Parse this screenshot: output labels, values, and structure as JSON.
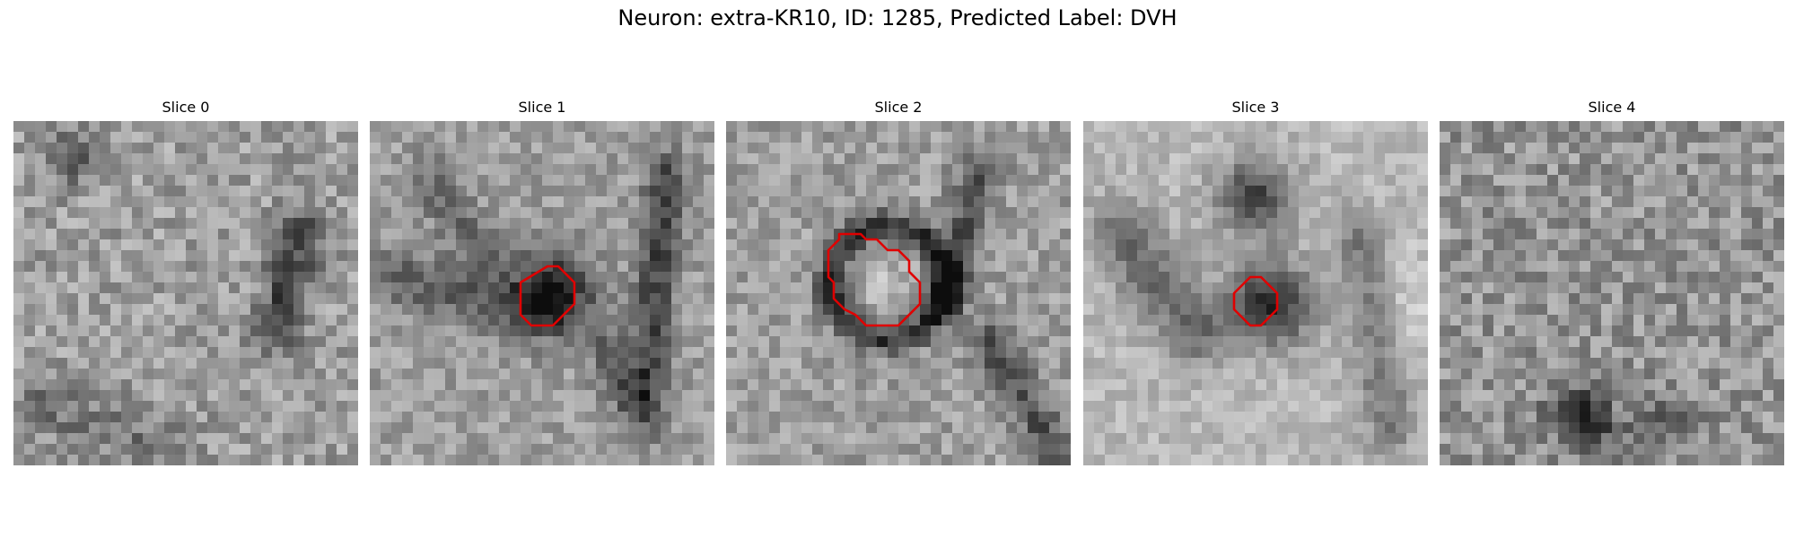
{
  "figure": {
    "title": "Neuron: extra-KR10, ID: 1285, Predicted Label: DVH"
  },
  "panels": [
    {
      "title": "Slice 0",
      "outline": false
    },
    {
      "title": "Slice 1",
      "outline": true
    },
    {
      "title": "Slice 2",
      "outline": true
    },
    {
      "title": "Slice 3",
      "outline": true
    },
    {
      "title": "Slice 4",
      "outline": false
    }
  ],
  "colors": {
    "outline": "#e00000",
    "background": "#ffffff"
  }
}
